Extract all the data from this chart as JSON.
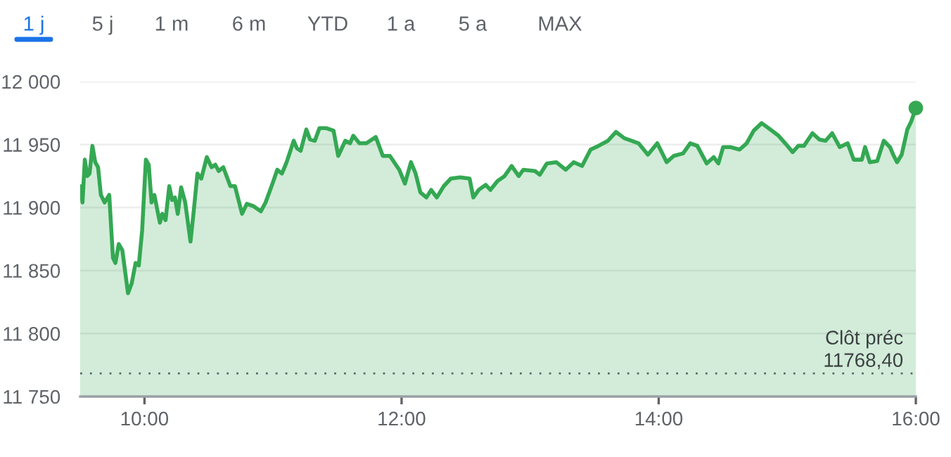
{
  "chart_data": {
    "type": "area",
    "annotations": [
      "1 j",
      "5 j",
      "1 m",
      "6 m",
      "YTD",
      "1 a",
      "5 a",
      "MAX"
    ],
    "series": [
      {
        "color": "#34a853",
        "x": [
          9.5,
          9.518,
          9.536,
          9.555,
          9.573,
          9.595,
          9.617,
          9.639,
          9.661,
          9.69,
          9.726,
          9.755,
          9.774,
          9.8,
          9.828,
          9.872,
          9.901,
          9.931,
          9.956,
          9.982,
          10.011,
          10.033,
          10.055,
          10.077,
          10.102,
          10.12,
          10.139,
          10.164,
          10.193,
          10.215,
          10.237,
          10.259,
          10.285,
          10.317,
          10.358,
          10.383,
          10.412,
          10.442,
          10.485,
          10.522,
          10.551,
          10.577,
          10.613,
          10.668,
          10.704,
          10.759,
          10.796,
          10.85,
          10.905,
          10.942,
          10.996,
          11.033,
          11.069,
          11.106,
          11.161,
          11.186,
          11.215,
          11.259,
          11.288,
          11.325,
          11.361,
          11.416,
          11.471,
          11.507,
          11.562,
          11.599,
          11.624,
          11.672,
          11.726,
          11.799,
          11.854,
          11.909,
          11.982,
          12.026,
          12.073,
          12.109,
          12.146,
          12.193,
          12.23,
          12.274,
          12.328,
          12.383,
          12.456,
          12.529,
          12.558,
          12.6,
          12.654,
          12.691,
          12.746,
          12.801,
          12.856,
          12.911,
          12.947,
          13.038,
          13.075,
          13.13,
          13.203,
          13.276,
          13.339,
          13.404,
          13.47,
          13.532,
          13.605,
          13.668,
          13.733,
          13.788,
          13.843,
          13.916,
          13.989,
          14.062,
          14.117,
          14.19,
          14.245,
          14.3,
          14.373,
          14.428,
          14.464,
          14.501,
          14.556,
          14.629,
          14.684,
          14.739,
          14.801,
          14.867,
          14.932,
          14.984,
          15.042,
          15.086,
          15.13,
          15.196,
          15.25,
          15.298,
          15.349,
          15.408,
          15.47,
          15.517,
          15.58,
          15.605,
          15.642,
          15.7,
          15.751,
          15.799,
          15.824,
          15.854,
          15.89,
          15.934,
          15.963,
          16.0
        ],
        "values": [
          11917,
          11904,
          11938,
          11925,
          11927,
          11949,
          11936,
          11932,
          11910,
          11904,
          11910,
          11860,
          11856,
          11871,
          11866,
          11832,
          11840,
          11856,
          11854,
          11882,
          11938,
          11934,
          11904,
          11910,
          11897,
          11888,
          11895,
          11890,
          11917,
          11906,
          11908,
          11895,
          11916,
          11904,
          11873,
          11897,
          11927,
          11923,
          11940,
          11932,
          11934,
          11929,
          11932,
          11917,
          11917,
          11895,
          11903,
          11901,
          11897,
          11904,
          11919,
          11930,
          11927,
          11936,
          11953,
          11947,
          11945,
          11962,
          11954,
          11953,
          11963,
          11963,
          11961,
          11941,
          11953,
          11951,
          11957,
          11951,
          11951,
          11956,
          11941,
          11941,
          11930,
          11919,
          11936,
          11927,
          11912,
          11908,
          11914,
          11908,
          11917,
          11923,
          11924,
          11923,
          11908,
          11914,
          11918,
          11914,
          11921,
          11925,
          11933,
          11925,
          11930,
          11929,
          11926,
          11935,
          11936,
          11930,
          11936,
          11933,
          11946,
          11949,
          11953,
          11960,
          11955,
          11953,
          11951,
          11942,
          11951,
          11936,
          11941,
          11943,
          11951,
          11949,
          11935,
          11940,
          11935,
          11948,
          11948,
          11946,
          11951,
          11961,
          11967,
          11962,
          11957,
          11951,
          11944,
          11949,
          11949,
          11959,
          11954,
          11953,
          11959,
          11948,
          11951,
          11938,
          11938,
          11948,
          11936,
          11937,
          11953,
          11948,
          11942,
          11936,
          11942,
          11962,
          11968,
          11979
        ]
      },
      {
        "type": "scatter",
        "color": "#34a853",
        "x": [
          16.0
        ],
        "values": [
          11979
        ]
      }
    ],
    "xlim": [
      9.5,
      16.0
    ],
    "xticks": [
      {
        "value": 10,
        "label": "10:00"
      },
      {
        "value": 12,
        "label": "12:00"
      },
      {
        "value": 14,
        "label": "14:00"
      },
      {
        "value": 16,
        "label": "16:00"
      }
    ],
    "ylim": [
      11750,
      12000
    ],
    "yticks": [
      {
        "value": 11750,
        "label": "11 750"
      },
      {
        "value": 11800,
        "label": "11 800"
      },
      {
        "value": 11850,
        "label": "11 850"
      },
      {
        "value": 11900,
        "label": "11 900"
      },
      {
        "value": 11950,
        "label": "11 950"
      },
      {
        "value": 12000,
        "label": "12 000"
      }
    ],
    "grid": "y",
    "ref_lines": [
      {
        "axis": "y",
        "value": 11768.4,
        "label": "Clôt préc\n11768,40",
        "line_style": "dotted",
        "color": "#5f6368"
      }
    ]
  }
}
